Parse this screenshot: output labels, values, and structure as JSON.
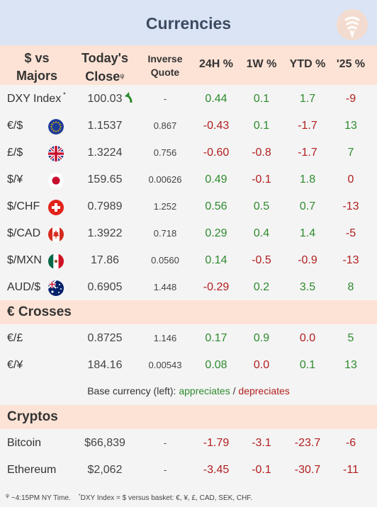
{
  "title": "Currencies",
  "header": {
    "col1a": "$ vs",
    "col1b": "Majors",
    "col2a": "Today's",
    "col2b": "Close",
    "col2_sup": "ψ",
    "col3a": "Inverse",
    "col3b": "Quote",
    "col4": "24H %",
    "col5": "1W %",
    "col6": "YTD %",
    "col7": "'25 %"
  },
  "majors": [
    {
      "name": "DXY Index",
      "sup": "*",
      "flag": "",
      "close": "100.03",
      "inverse": "-",
      "h24": "0.44",
      "w1": "0.1",
      "ytd": "1.7",
      "y25": "-9",
      "arrow": "up-green"
    },
    {
      "name": "€/$",
      "flag": "eu",
      "close": "1.1537",
      "inverse": "0.867",
      "h24": "-0.43",
      "w1": "0.1",
      "ytd": "-1.7",
      "y25": "13"
    },
    {
      "name": "£/$",
      "flag": "uk",
      "close": "1.3224",
      "inverse": "0.756",
      "h24": "-0.60",
      "w1": "-0.8",
      "ytd": "-1.7",
      "y25": "7"
    },
    {
      "name": "$/¥",
      "flag": "jp",
      "close": "159.65",
      "inverse": "0.00626",
      "h24": "0.49",
      "w1": "-0.1",
      "ytd": "1.8",
      "y25": "0"
    },
    {
      "name": "$/CHF",
      "flag": "ch",
      "close": "0.7989",
      "inverse": "1.252",
      "h24": "0.56",
      "w1": "0.5",
      "ytd": "0.7",
      "y25": "-13"
    },
    {
      "name": "$/CAD",
      "flag": "ca",
      "close": "1.3922",
      "inverse": "0.718",
      "h24": "0.29",
      "w1": "0.4",
      "ytd": "1.4",
      "y25": "-5"
    },
    {
      "name": "$/MXN",
      "flag": "mx",
      "close": "17.86",
      "inverse": "0.0560",
      "h24": "0.14",
      "w1": "-0.5",
      "ytd": "-0.9",
      "y25": "-13"
    },
    {
      "name": "AUD/$",
      "flag": "au",
      "close": "0.6905",
      "inverse": "1.448",
      "h24": "-0.29",
      "w1": "0.2",
      "ytd": "3.5",
      "y25": "8"
    }
  ],
  "crosses_title": "€ Crosses",
  "crosses": [
    {
      "name": "€/£",
      "close": "0.8725",
      "inverse": "1.146",
      "h24": "0.17",
      "w1": "0.9",
      "ytd": "0.0",
      "y25": "5"
    },
    {
      "name": "€/¥",
      "close": "184.16",
      "inverse": "0.00543",
      "h24": "0.08",
      "w1": "0.0",
      "ytd": "0.1",
      "y25": "13"
    }
  ],
  "legend": {
    "prefix": "Base currency (left):  ",
    "appreciates": "appreciates",
    "sep": " / ",
    "depreciates": "depreciates"
  },
  "cryptos_title": "Cryptos",
  "cryptos": [
    {
      "name": "Bitcoin",
      "close": "$66,839",
      "inverse": "-",
      "h24": "-1.79",
      "w1": "-3.1",
      "ytd": "-23.7",
      "y25": "-6"
    },
    {
      "name": "Ethereum",
      "close": "$2,062",
      "inverse": "-",
      "h24": "-3.45",
      "w1": "-0.1",
      "ytd": "-30.7",
      "y25": "-11"
    }
  ],
  "footnote": {
    "psi": "ψ",
    "text1": " ~4:15PM NY Time.",
    "star": "*",
    "text2": "DXY Index = $ versus basket: €, ¥, £, CAD, SEK, CHF."
  },
  "colors": {
    "positive": "#2e8b2e",
    "negative": "#b21e1e",
    "header_bg": "#fde3d6",
    "title_bg": "#dbe4f4"
  }
}
